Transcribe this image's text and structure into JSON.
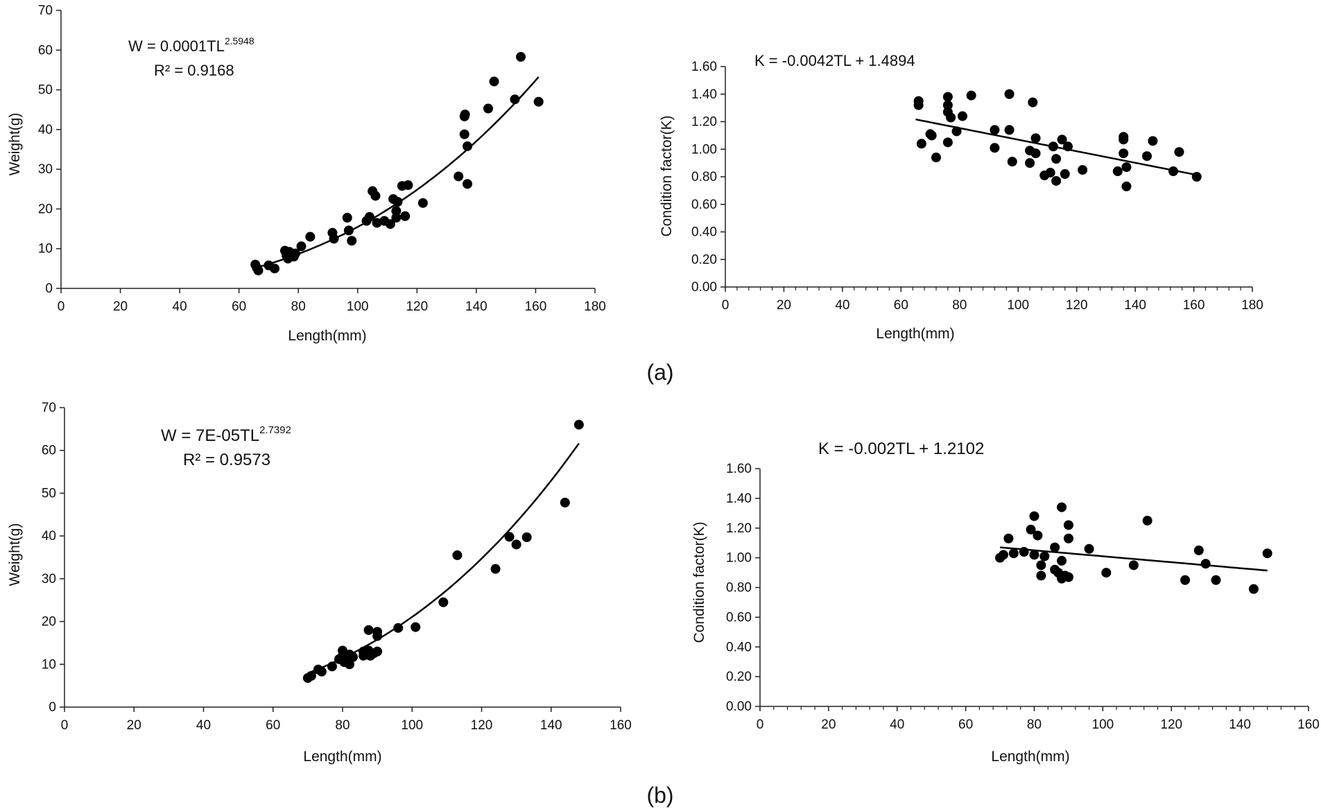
{
  "figure": {
    "panel_labels": [
      "(a)",
      "(b)"
    ]
  },
  "chart_data": [
    {
      "id": "a-weight",
      "type": "scatter",
      "panel": "(a)",
      "xlabel": "Length(mm)",
      "ylabel": "Weight(g)",
      "xlim": [
        0,
        180
      ],
      "ylim": [
        0,
        70
      ],
      "xticks": [
        "0",
        "20",
        "40",
        "60",
        "80",
        "100",
        "120",
        "140",
        "160",
        "180"
      ],
      "yticks": [
        "0",
        "10",
        "20",
        "30",
        "40",
        "50",
        "60",
        "70"
      ],
      "equation": {
        "prefix": "W = 0.0001TL",
        "exponent": "2.5948",
        "r2": "R² = 0.9168"
      },
      "trendline": {
        "kind": "power",
        "a": 0.0001,
        "b": 2.5948,
        "xrange": [
          65,
          161
        ]
      },
      "points": [
        [
          65.5,
          6.0
        ],
        [
          66,
          5.2
        ],
        [
          66.5,
          4.5
        ],
        [
          70,
          5.8
        ],
        [
          72,
          5.0
        ],
        [
          75.5,
          9.5
        ],
        [
          76,
          8.3
        ],
        [
          76.5,
          7.5
        ],
        [
          77,
          9.2
        ],
        [
          78.5,
          8.0
        ],
        [
          79,
          8.8
        ],
        [
          81,
          10.6
        ],
        [
          84,
          13.0
        ],
        [
          91.5,
          14.0
        ],
        [
          92,
          12.5
        ],
        [
          96.5,
          17.8
        ],
        [
          97,
          14.6
        ],
        [
          98,
          12.0
        ],
        [
          103,
          17.0
        ],
        [
          104,
          18.0
        ],
        [
          105,
          24.5
        ],
        [
          106,
          23.3
        ],
        [
          106.5,
          16.5
        ],
        [
          109,
          17.0
        ],
        [
          111,
          16.2
        ],
        [
          112,
          22.5
        ],
        [
          113,
          19.5
        ],
        [
          113.5,
          21.8
        ],
        [
          113,
          17.8
        ],
        [
          115,
          25.8
        ],
        [
          116,
          18.2
        ],
        [
          117,
          26.0
        ],
        [
          122,
          21.5
        ],
        [
          134,
          28.2
        ],
        [
          136,
          43.3
        ],
        [
          136.2,
          43.8
        ],
        [
          136,
          38.8
        ],
        [
          137,
          35.8
        ],
        [
          137,
          26.3
        ],
        [
          144,
          45.3
        ],
        [
          146,
          52.1
        ],
        [
          153,
          47.6
        ],
        [
          155,
          58.3
        ],
        [
          161,
          47.0
        ]
      ]
    },
    {
      "id": "a-condition",
      "type": "scatter",
      "panel": "(a)",
      "xlabel": "Length(mm)",
      "ylabel": "Condition factor(K)",
      "xlim": [
        0,
        180
      ],
      "ylim": [
        0,
        1.6
      ],
      "xticks": [
        "0",
        "20",
        "40",
        "60",
        "80",
        "100",
        "120",
        "140",
        "160",
        "180"
      ],
      "yticks": [
        "0.00",
        "0.20",
        "0.40",
        "0.60",
        "0.80",
        "1.00",
        "1.20",
        "1.40",
        "1.60"
      ],
      "equation": {
        "text": "K = -0.0042TL + 1.4894"
      },
      "trendline": {
        "kind": "linear",
        "slope": -0.0042,
        "intercept": 1.4894,
        "xrange": [
          65,
          161
        ]
      },
      "points": [
        [
          66,
          1.35
        ],
        [
          66,
          1.32
        ],
        [
          67,
          1.04
        ],
        [
          70,
          1.11
        ],
        [
          70.5,
          1.1
        ],
        [
          72,
          0.94
        ],
        [
          76,
          1.38
        ],
        [
          76,
          1.32
        ],
        [
          76,
          1.27
        ],
        [
          76,
          1.05
        ],
        [
          77,
          1.23
        ],
        [
          79,
          1.13
        ],
        [
          81,
          1.24
        ],
        [
          84,
          1.39
        ],
        [
          92,
          1.14
        ],
        [
          92,
          1.01
        ],
        [
          97,
          1.4
        ],
        [
          97,
          1.14
        ],
        [
          98,
          0.91
        ],
        [
          104,
          0.99
        ],
        [
          104,
          0.9
        ],
        [
          105,
          1.34
        ],
        [
          106,
          1.08
        ],
        [
          106,
          0.97
        ],
        [
          109,
          0.81
        ],
        [
          111,
          0.83
        ],
        [
          112,
          1.02
        ],
        [
          113,
          0.93
        ],
        [
          113,
          0.77
        ],
        [
          115,
          1.07
        ],
        [
          116,
          0.82
        ],
        [
          117,
          1.02
        ],
        [
          122,
          0.85
        ],
        [
          134,
          0.84
        ],
        [
          136,
          1.09
        ],
        [
          136,
          1.07
        ],
        [
          136,
          0.97
        ],
        [
          137,
          0.87
        ],
        [
          137,
          0.73
        ],
        [
          144,
          0.95
        ],
        [
          146,
          1.06
        ],
        [
          153,
          0.84
        ],
        [
          155,
          0.98
        ],
        [
          161,
          0.8
        ]
      ]
    },
    {
      "id": "b-weight",
      "type": "scatter",
      "panel": "(b)",
      "xlabel": "Length(mm)",
      "ylabel": "Weight(g)",
      "xlim": [
        0,
        160
      ],
      "ylim": [
        0,
        70
      ],
      "xticks": [
        "0",
        "20",
        "40",
        "60",
        "80",
        "100",
        "120",
        "140",
        "160"
      ],
      "yticks": [
        "0",
        "10",
        "20",
        "30",
        "40",
        "50",
        "60",
        "70"
      ],
      "equation": {
        "prefix": "W = 7E-05TL",
        "exponent": "2.7392",
        "r2": "R² = 0.9573"
      },
      "trendline": {
        "kind": "power",
        "a": 7e-05,
        "b": 2.7392,
        "xrange": [
          70,
          148
        ]
      },
      "points": [
        [
          70,
          6.8
        ],
        [
          71,
          7.3
        ],
        [
          73,
          8.8
        ],
        [
          74,
          8.3
        ],
        [
          77,
          9.5
        ],
        [
          79,
          11.2
        ],
        [
          80,
          13.2
        ],
        [
          80,
          12.0
        ],
        [
          80.5,
          10.5
        ],
        [
          81,
          11.0
        ],
        [
          82,
          12.3
        ],
        [
          82,
          10.0
        ],
        [
          83,
          11.7
        ],
        [
          86,
          13.0
        ],
        [
          86,
          12.0
        ],
        [
          87,
          12.4
        ],
        [
          87.5,
          18.0
        ],
        [
          87.5,
          13.2
        ],
        [
          88,
          12.0
        ],
        [
          89,
          12.6
        ],
        [
          90,
          17.6
        ],
        [
          90,
          13.0
        ],
        [
          90,
          16.6
        ],
        [
          96,
          18.5
        ],
        [
          101,
          18.7
        ],
        [
          109,
          24.5
        ],
        [
          113,
          35.5
        ],
        [
          124,
          32.3
        ],
        [
          128,
          39.8
        ],
        [
          130,
          38.0
        ],
        [
          133,
          39.7
        ],
        [
          144,
          47.8
        ],
        [
          148,
          66.0
        ]
      ]
    },
    {
      "id": "b-condition",
      "type": "scatter",
      "panel": "(b)",
      "xlabel": "Length(mm)",
      "ylabel": "Condition factor(K)",
      "xlim": [
        0,
        160
      ],
      "ylim": [
        0,
        1.6
      ],
      "xticks": [
        "0",
        "20",
        "40",
        "60",
        "80",
        "100",
        "120",
        "140",
        "160"
      ],
      "yticks": [
        "0.00",
        "0.20",
        "0.40",
        "0.60",
        "0.80",
        "1.00",
        "1.20",
        "1.40",
        "1.60"
      ],
      "equation": {
        "text": "K = -0.002TL + 1.2102"
      },
      "trendline": {
        "kind": "linear",
        "slope": -0.002,
        "intercept": 1.2102,
        "xrange": [
          70,
          148
        ]
      },
      "points": [
        [
          70,
          1.0
        ],
        [
          71,
          1.02
        ],
        [
          72.5,
          1.13
        ],
        [
          74,
          1.03
        ],
        [
          77,
          1.04
        ],
        [
          79,
          1.19
        ],
        [
          80,
          1.28
        ],
        [
          80,
          1.02
        ],
        [
          81,
          1.15
        ],
        [
          82,
          0.95
        ],
        [
          82,
          0.88
        ],
        [
          83,
          1.01
        ],
        [
          86,
          1.07
        ],
        [
          86,
          0.92
        ],
        [
          87,
          0.9
        ],
        [
          88,
          1.34
        ],
        [
          88,
          0.98
        ],
        [
          88,
          0.86
        ],
        [
          89,
          0.88
        ],
        [
          90,
          1.22
        ],
        [
          90,
          1.13
        ],
        [
          90,
          0.87
        ],
        [
          96,
          1.06
        ],
        [
          101,
          0.9
        ],
        [
          109,
          0.95
        ],
        [
          113,
          1.25
        ],
        [
          124,
          0.85
        ],
        [
          128,
          1.05
        ],
        [
          130,
          0.96
        ],
        [
          133,
          0.85
        ],
        [
          144,
          0.79
        ],
        [
          148,
          1.03
        ]
      ]
    }
  ]
}
